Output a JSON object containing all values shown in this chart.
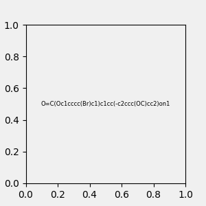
{
  "smiles": "O=C(Oc1cccc(Br)c1)c1cc(-c2ccc(OC)cc2)on1",
  "background_color": "#f0f0f0",
  "bond_color": "#000000",
  "title": "",
  "figsize": [
    3.0,
    3.0
  ],
  "dpi": 100,
  "atom_colors": {
    "O": "#ff0000",
    "N": "#0000ff",
    "Br": "#a52a2a",
    "C": "#000000"
  }
}
